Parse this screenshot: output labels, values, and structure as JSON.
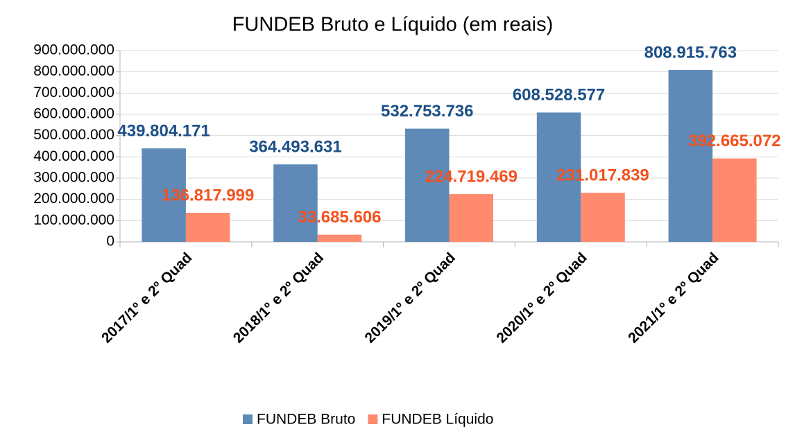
{
  "chart_data": {
    "type": "bar",
    "title": "FUNDEB Bruto e Líquido (em reais)",
    "categories": [
      "2017/1º e 2º Quad",
      "2018/1º e 2º Quad",
      "2019/1º e 2º Quad",
      "2020/1º e 2º Quad",
      "2021/1º e 2º Quad"
    ],
    "series": [
      {
        "name": "FUNDEB Bruto",
        "color": "#5f89b6",
        "label_color": "#1c4f87",
        "values": [
          439804171,
          364493631,
          532753736,
          608528577,
          808915763
        ],
        "value_labels": [
          "439.804.171",
          "364.493.631",
          "532.753.736",
          "608.528.577",
          "808.915.763"
        ]
      },
      {
        "name": "FUNDEB Líquido",
        "color": "#ff8a6e",
        "label_color": "#f4511e",
        "values": [
          136817999,
          33685606,
          224719469,
          231017839,
          392665072
        ],
        "value_labels": [
          "136.817.999",
          "33.685.606",
          "224.719.469",
          "231.017.839",
          "392.665.072"
        ]
      }
    ],
    "ylim": [
      0,
      900000000
    ],
    "yticks": [
      0,
      {
        "value": 100000000,
        "label": "100.000.000"
      },
      {
        "value": 200000000,
        "label": "200.000.000"
      },
      {
        "value": 300000000,
        "label": "300.000.000"
      },
      {
        "value": 400000000,
        "label": "400.000.000"
      },
      {
        "value": 500000000,
        "label": "500.000.000"
      },
      {
        "value": 600000000,
        "label": "600.000.000"
      },
      {
        "value": 700000000,
        "label": "700.000.000"
      },
      {
        "value": 800000000,
        "label": "800.000.000"
      },
      {
        "value": 900000000,
        "label": "900.000.000"
      }
    ],
    "grid": true,
    "legend": "bottom"
  }
}
